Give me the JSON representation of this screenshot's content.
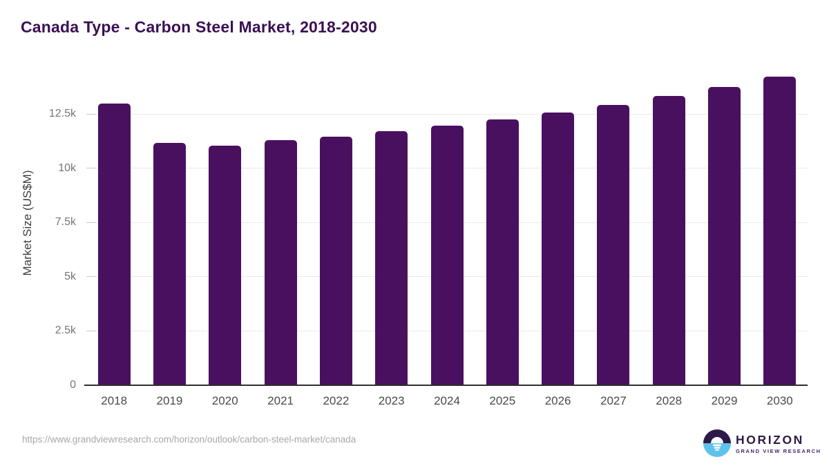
{
  "title": "Canada Type - Carbon Steel Market, 2018-2030",
  "chart_data": {
    "type": "bar",
    "title": "Canada Type - Carbon Steel Market, 2018-2030",
    "categories": [
      "2018",
      "2019",
      "2020",
      "2021",
      "2022",
      "2023",
      "2024",
      "2025",
      "2026",
      "2027",
      "2028",
      "2029",
      "2030"
    ],
    "values": [
      12980,
      11170,
      11050,
      11280,
      11440,
      11710,
      11970,
      12240,
      12570,
      12910,
      13320,
      13750,
      14230
    ],
    "xlabel": "",
    "ylabel": "Market Size (US$M)",
    "ylim": [
      0,
      14570
    ],
    "yticks": [
      0,
      2500,
      5000,
      7500,
      10000,
      12500
    ],
    "ytick_labels": [
      "0",
      "2.5k",
      "5k",
      "7.5k",
      "10k",
      "12.5k"
    ],
    "grid": "horizontal",
    "legend": "none",
    "bar_color": "#4a1060"
  },
  "colors": {
    "title": "#3a1053",
    "bar": "#4a1060",
    "axis_line": "#2d2d2d",
    "gridline": "#e9e9e9",
    "tick_dash": "#c9c9c9",
    "ytick_label": "#767676",
    "xtick_label": "#4a4a4a",
    "url_text": "#a8a8a8",
    "logo_purple": "#2e1a47",
    "logo_blue": "#5ec3ea"
  },
  "footer": {
    "source_url": "https://www.grandviewresearch.com/horizon/outlook/carbon-steel-market/canada",
    "logo": {
      "wordmark": "HORIZON",
      "tagline": "GRAND VIEW RESEARCH"
    }
  }
}
